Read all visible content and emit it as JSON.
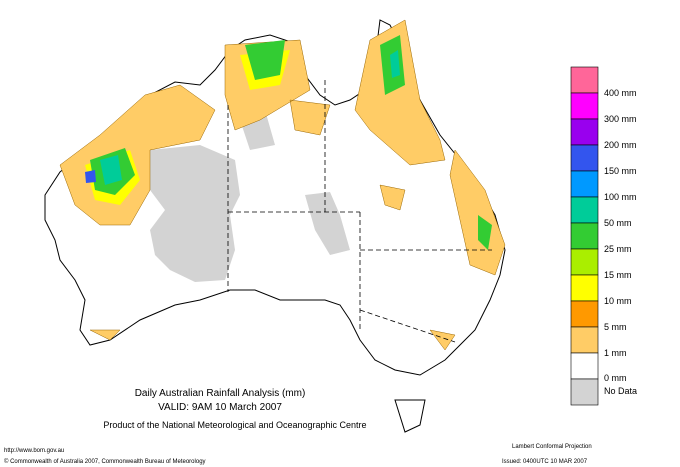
{
  "header": {
    "title": "Daily Australian Rainfall Analysis (mm)",
    "valid": "VALID: 9AM 10 March 2007",
    "product": "Product of the National Meteorological and Oceanographic Centre"
  },
  "legend": {
    "items": [
      {
        "label": "400 mm",
        "color": "#ff6699"
      },
      {
        "label": "300 mm",
        "color": "#ff00ff"
      },
      {
        "label": "200 mm",
        "color": "#9900ee"
      },
      {
        "label": "150 mm",
        "color": "#3355ee"
      },
      {
        "label": "100 mm",
        "color": "#0099ff"
      },
      {
        "label": "50 mm",
        "color": "#00cc99"
      },
      {
        "label": "25 mm",
        "color": "#33cc33"
      },
      {
        "label": "15 mm",
        "color": "#aaee00"
      },
      {
        "label": "10 mm",
        "color": "#ffff00"
      },
      {
        "label": "5 mm",
        "color": "#ff9900"
      },
      {
        "label": "1 mm",
        "color": "#ffcc66"
      },
      {
        "label": "0 mm",
        "color": "#ffffff"
      },
      {
        "label": "No Data",
        "color": "#d3d3d3"
      }
    ]
  },
  "footer": {
    "url": "http://www.bom.gov.au",
    "copyright": "© Commonwealth of Australia 2007, Commonwealth Bureau of Meteorology",
    "projection": "Lambert Conformal Projection",
    "issued": "Issued: 0400UTC 10 MAR 2007"
  }
}
